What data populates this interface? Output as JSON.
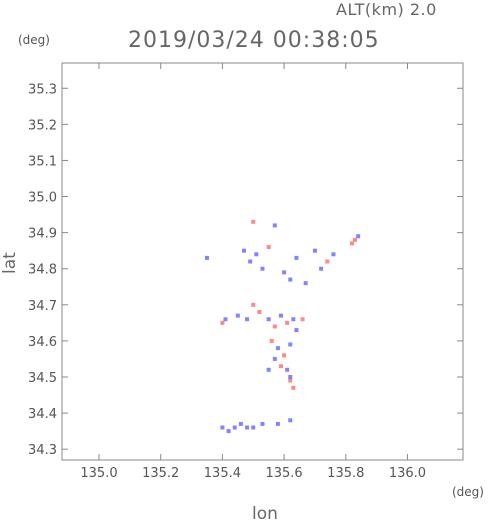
{
  "header": {
    "altitude_label": "ALT(km) 2.0",
    "datetime": "2019/03/24 00:38:05"
  },
  "axes": {
    "x_label": "lon",
    "y_label": "lat",
    "x_unit": "(deg)",
    "y_unit": "(deg)",
    "x_range": [
      134.88,
      136.18
    ],
    "y_range": [
      34.27,
      35.37
    ],
    "x_ticks": [
      135.0,
      135.2,
      135.4,
      135.6,
      135.8,
      136.0
    ],
    "x_tick_labels": [
      "135.0",
      "135.2",
      "135.4",
      "135.6",
      "135.8",
      "136.0"
    ],
    "y_ticks": [
      34.3,
      34.4,
      34.5,
      34.6,
      34.7,
      34.8,
      34.9,
      35.0,
      35.1,
      35.2,
      35.3
    ],
    "y_tick_labels": [
      "34.3",
      "34.4",
      "34.5",
      "34.6",
      "34.7",
      "34.8",
      "34.9",
      "35.0",
      "35.1",
      "35.2",
      "35.3"
    ]
  },
  "colors": {
    "positive": "#ff6060",
    "negative": "#5a5aff",
    "frame": "#888888"
  },
  "chart_data": {
    "type": "scatter",
    "description_free": true,
    "points": [
      {
        "lon": 135.5,
        "lat": 34.93,
        "sign": "pos"
      },
      {
        "lon": 135.57,
        "lat": 34.92,
        "sign": "neg"
      },
      {
        "lon": 135.83,
        "lat": 34.88,
        "sign": "pos"
      },
      {
        "lon": 135.82,
        "lat": 34.87,
        "sign": "pos"
      },
      {
        "lon": 135.84,
        "lat": 34.89,
        "sign": "neg"
      },
      {
        "lon": 135.35,
        "lat": 34.83,
        "sign": "neg"
      },
      {
        "lon": 135.47,
        "lat": 34.85,
        "sign": "neg"
      },
      {
        "lon": 135.49,
        "lat": 34.82,
        "sign": "neg"
      },
      {
        "lon": 135.51,
        "lat": 34.84,
        "sign": "neg"
      },
      {
        "lon": 135.53,
        "lat": 34.8,
        "sign": "neg"
      },
      {
        "lon": 135.55,
        "lat": 34.86,
        "sign": "pos"
      },
      {
        "lon": 135.6,
        "lat": 34.79,
        "sign": "neg"
      },
      {
        "lon": 135.62,
        "lat": 34.77,
        "sign": "neg"
      },
      {
        "lon": 135.64,
        "lat": 34.83,
        "sign": "neg"
      },
      {
        "lon": 135.67,
        "lat": 34.76,
        "sign": "neg"
      },
      {
        "lon": 135.7,
        "lat": 34.85,
        "sign": "neg"
      },
      {
        "lon": 135.72,
        "lat": 34.8,
        "sign": "neg"
      },
      {
        "lon": 135.74,
        "lat": 34.82,
        "sign": "pos"
      },
      {
        "lon": 135.76,
        "lat": 34.84,
        "sign": "neg"
      },
      {
        "lon": 135.4,
        "lat": 34.65,
        "sign": "pos"
      },
      {
        "lon": 135.41,
        "lat": 34.66,
        "sign": "neg"
      },
      {
        "lon": 135.45,
        "lat": 34.67,
        "sign": "neg"
      },
      {
        "lon": 135.48,
        "lat": 34.66,
        "sign": "neg"
      },
      {
        "lon": 135.5,
        "lat": 34.7,
        "sign": "pos"
      },
      {
        "lon": 135.52,
        "lat": 34.68,
        "sign": "pos"
      },
      {
        "lon": 135.55,
        "lat": 34.66,
        "sign": "neg"
      },
      {
        "lon": 135.57,
        "lat": 34.64,
        "sign": "pos"
      },
      {
        "lon": 135.59,
        "lat": 34.67,
        "sign": "neg"
      },
      {
        "lon": 135.61,
        "lat": 34.65,
        "sign": "pos"
      },
      {
        "lon": 135.63,
        "lat": 34.66,
        "sign": "neg"
      },
      {
        "lon": 135.64,
        "lat": 34.63,
        "sign": "neg"
      },
      {
        "lon": 135.66,
        "lat": 34.66,
        "sign": "pos"
      },
      {
        "lon": 135.56,
        "lat": 34.6,
        "sign": "pos"
      },
      {
        "lon": 135.58,
        "lat": 34.58,
        "sign": "neg"
      },
      {
        "lon": 135.6,
        "lat": 34.56,
        "sign": "pos"
      },
      {
        "lon": 135.62,
        "lat": 34.59,
        "sign": "neg"
      },
      {
        "lon": 135.57,
        "lat": 34.55,
        "sign": "neg"
      },
      {
        "lon": 135.59,
        "lat": 34.53,
        "sign": "pos"
      },
      {
        "lon": 135.61,
        "lat": 34.52,
        "sign": "neg"
      },
      {
        "lon": 135.55,
        "lat": 34.52,
        "sign": "neg"
      },
      {
        "lon": 135.62,
        "lat": 34.49,
        "sign": "pos"
      },
      {
        "lon": 135.63,
        "lat": 34.47,
        "sign": "pos"
      },
      {
        "lon": 135.62,
        "lat": 34.5,
        "sign": "neg"
      },
      {
        "lon": 135.4,
        "lat": 34.36,
        "sign": "neg"
      },
      {
        "lon": 135.42,
        "lat": 34.35,
        "sign": "neg"
      },
      {
        "lon": 135.44,
        "lat": 34.36,
        "sign": "neg"
      },
      {
        "lon": 135.46,
        "lat": 34.37,
        "sign": "neg"
      },
      {
        "lon": 135.48,
        "lat": 34.36,
        "sign": "neg"
      },
      {
        "lon": 135.5,
        "lat": 34.36,
        "sign": "neg"
      },
      {
        "lon": 135.53,
        "lat": 34.37,
        "sign": "neg"
      },
      {
        "lon": 135.58,
        "lat": 34.37,
        "sign": "neg"
      },
      {
        "lon": 135.62,
        "lat": 34.38,
        "sign": "neg"
      }
    ]
  }
}
